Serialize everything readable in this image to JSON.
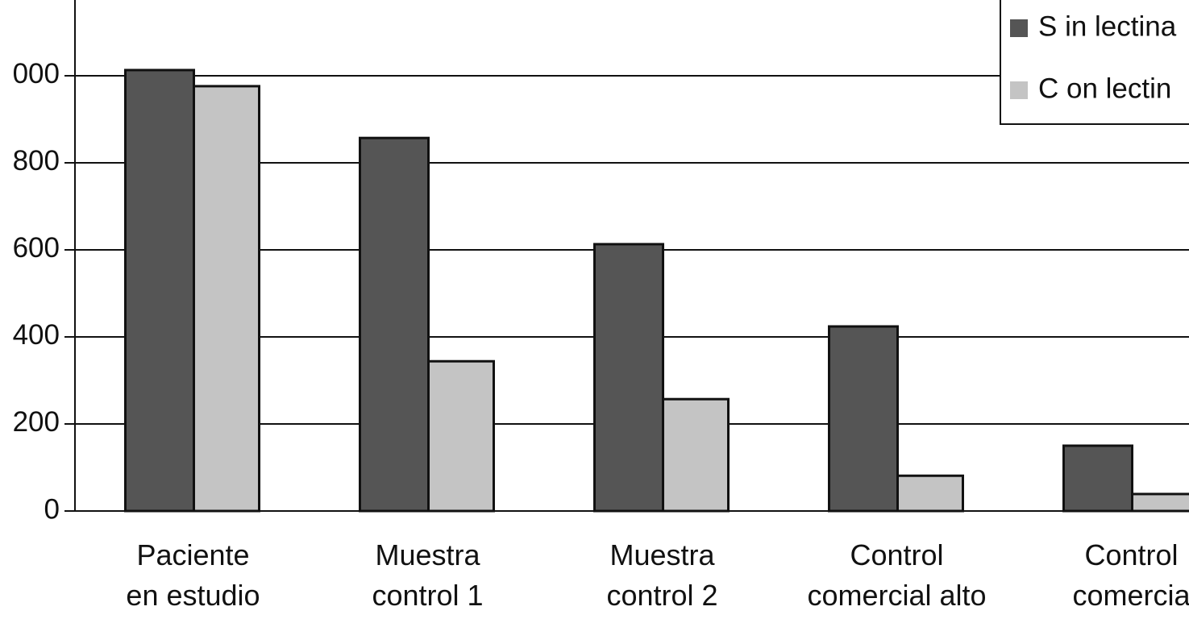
{
  "chart_data": {
    "type": "bar",
    "categories": [
      "Paciente\nen estudio",
      "Muestra\ncontrol 1",
      "Muestra\ncontrol 2",
      "Control\ncomercial alto",
      "Control\ncomercia"
    ],
    "series": [
      {
        "name": "S in lectina",
        "color": "#555555",
        "values": [
          1013,
          857,
          613,
          424,
          150
        ]
      },
      {
        "name": "C on lectin",
        "color": "#c4c4c4",
        "values": [
          976,
          344,
          257,
          81,
          39
        ]
      }
    ],
    "ylim": [
      0,
      1174
    ],
    "yticks": [
      0,
      200,
      400,
      600,
      800,
      {
        "value": 1000,
        "label": "000"
      }
    ],
    "grid": true
  }
}
